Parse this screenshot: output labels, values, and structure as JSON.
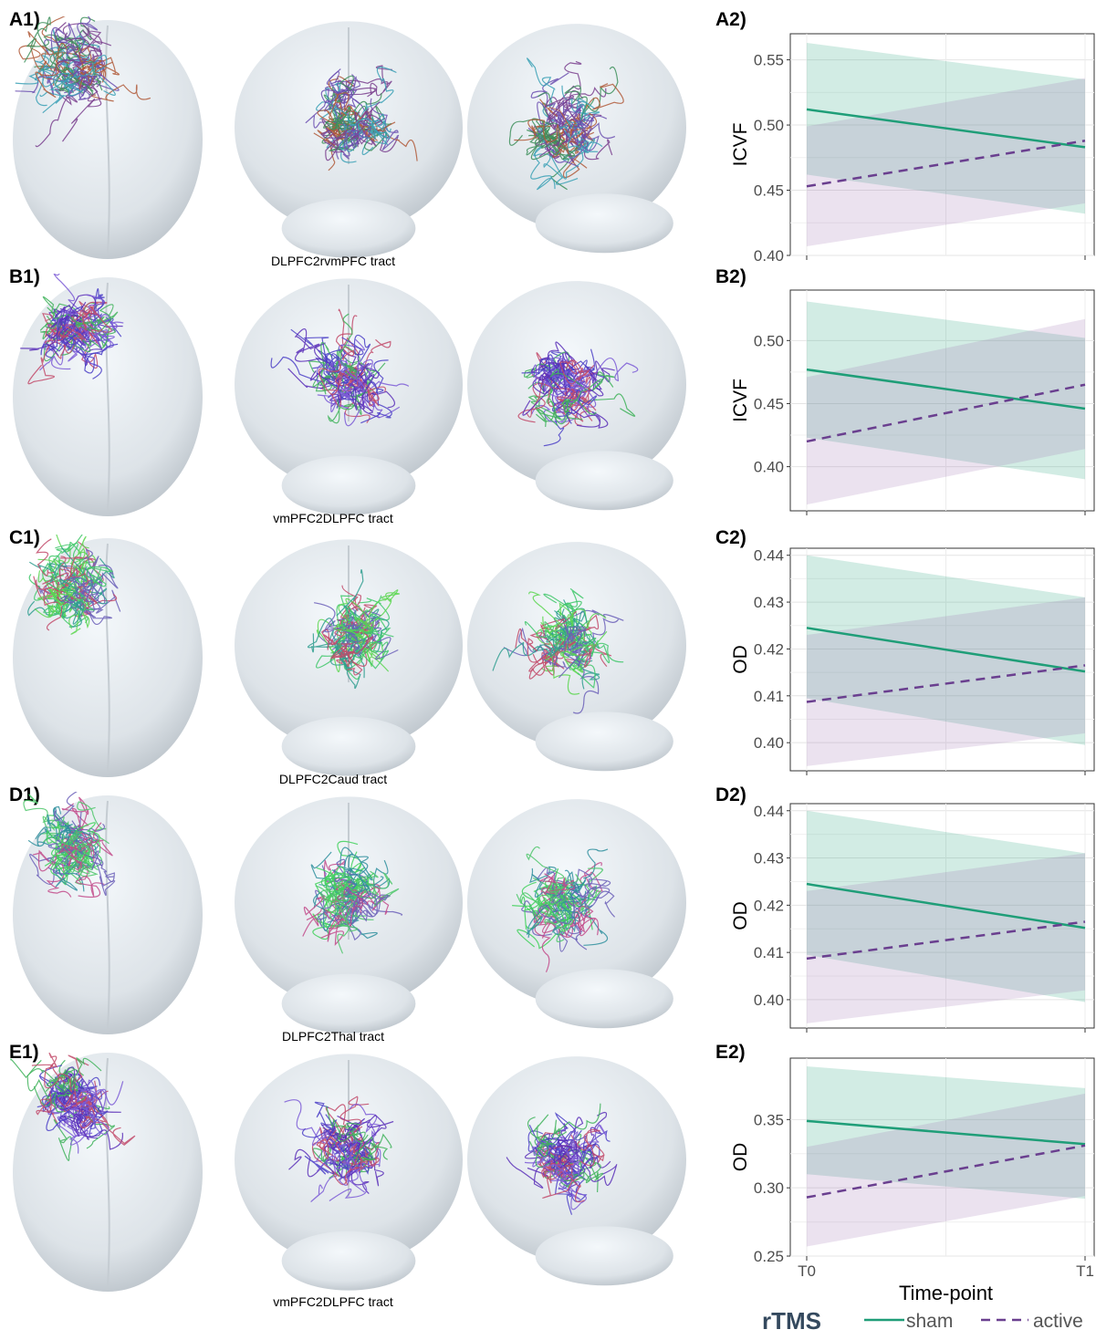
{
  "rows": [
    {
      "label_left": "A1)",
      "label_right": "A2)",
      "caption": "DLPFC2rvmPFC tract",
      "fiber_colors": [
        "#7a3f8e",
        "#3d8f5a",
        "#b05b3a",
        "#6b4fb0",
        "#3aa0b5"
      ]
    },
    {
      "label_left": "B1)",
      "label_right": "B2)",
      "caption": "vmPFC2DLPFC tract",
      "fiber_colors": [
        "#4b3fc7",
        "#5a2fb8",
        "#3fb35a",
        "#c24a6a",
        "#7b5bd6"
      ]
    },
    {
      "label_left": "C1)",
      "label_right": "C2)",
      "caption": "DLPFC2Caud tract",
      "fiber_colors": [
        "#3fc76a",
        "#2f9d8f",
        "#6b5fb8",
        "#c24a6a",
        "#5bd64f"
      ]
    },
    {
      "label_left": "D1)",
      "label_right": "D2)",
      "caption": "DLPFC2Thal tract",
      "fiber_colors": [
        "#3fd15a",
        "#2f8f9d",
        "#6b5fb8",
        "#c24a8a",
        "#4fc76b"
      ]
    },
    {
      "label_left": "E1)",
      "label_right": "E2)",
      "caption": "vmPFC2DLPFC tract",
      "fiber_colors": [
        "#4b3fc7",
        "#5a2fb8",
        "#3fb35a",
        "#c24a6a",
        "#7b5bd6"
      ]
    }
  ],
  "chart_data": [
    {
      "type": "line",
      "panel": "A2)",
      "ylabel": "ICVF",
      "ylim": [
        0.4,
        0.57
      ],
      "yticks": [
        0.4,
        0.45,
        0.5,
        0.55
      ],
      "x": [
        "T0",
        "T1"
      ],
      "series": [
        {
          "name": "sham",
          "values": [
            0.512,
            0.483
          ],
          "ci_lower": [
            0.462,
            0.432
          ],
          "ci_upper": [
            0.563,
            0.535
          ]
        },
        {
          "name": "active",
          "values": [
            0.453,
            0.488
          ],
          "ci_lower": [
            0.407,
            0.44
          ],
          "ci_upper": [
            0.499,
            0.536
          ]
        }
      ]
    },
    {
      "type": "line",
      "panel": "B2)",
      "ylabel": "ICVF",
      "ylim": [
        0.365,
        0.54
      ],
      "yticks": [
        0.4,
        0.45,
        0.5
      ],
      "x": [
        "T0",
        "T1"
      ],
      "series": [
        {
          "name": "sham",
          "values": [
            0.477,
            0.446
          ],
          "ci_lower": [
            0.423,
            0.39
          ],
          "ci_upper": [
            0.531,
            0.502
          ]
        },
        {
          "name": "active",
          "values": [
            0.42,
            0.465
          ],
          "ci_lower": [
            0.37,
            0.414
          ],
          "ci_upper": [
            0.471,
            0.517
          ]
        }
      ]
    },
    {
      "type": "line",
      "panel": "C2)",
      "ylabel": "OD",
      "ylim": [
        0.394,
        0.4415
      ],
      "yticks": [
        0.4,
        0.41,
        0.42,
        0.43,
        0.44
      ],
      "x": [
        "T0",
        "T1"
      ],
      "series": [
        {
          "name": "sham",
          "values": [
            0.4245,
            0.4152
          ],
          "ci_lower": [
            0.4095,
            0.3995
          ],
          "ci_upper": [
            0.44,
            0.431
          ]
        },
        {
          "name": "active",
          "values": [
            0.4087,
            0.4165
          ],
          "ci_lower": [
            0.395,
            0.402
          ],
          "ci_upper": [
            0.423,
            0.431
          ]
        }
      ]
    },
    {
      "type": "line",
      "panel": "D2)",
      "ylabel": "OD",
      "ylim": [
        0.394,
        0.4415
      ],
      "yticks": [
        0.4,
        0.41,
        0.42,
        0.43,
        0.44
      ],
      "x": [
        "T0",
        "T1"
      ],
      "series": [
        {
          "name": "sham",
          "values": [
            0.4245,
            0.4152
          ],
          "ci_lower": [
            0.4095,
            0.3995
          ],
          "ci_upper": [
            0.44,
            0.431
          ]
        },
        {
          "name": "active",
          "values": [
            0.4087,
            0.4165
          ],
          "ci_lower": [
            0.395,
            0.402
          ],
          "ci_upper": [
            0.423,
            0.431
          ]
        }
      ]
    },
    {
      "type": "line",
      "panel": "E2)",
      "ylabel": "OD",
      "xlabel": "Time-point",
      "ylim": [
        0.25,
        0.395
      ],
      "yticks": [
        0.25,
        0.3,
        0.35
      ],
      "x": [
        "T0",
        "T1"
      ],
      "series": [
        {
          "name": "sham",
          "values": [
            0.349,
            0.332
          ],
          "ci_lower": [
            0.31,
            0.292
          ],
          "ci_upper": [
            0.389,
            0.373
          ]
        },
        {
          "name": "active",
          "values": [
            0.293,
            0.331
          ],
          "ci_lower": [
            0.257,
            0.294
          ],
          "ci_upper": [
            0.33,
            0.369
          ]
        }
      ]
    }
  ],
  "legend": {
    "title": "rTMS",
    "sham_label": "sham",
    "active_label": "active",
    "sham_color": "#1f9e78",
    "active_color": "#6a3f8f",
    "sham_ribbon": "#1f9e78",
    "active_ribbon": "#9a6fb0"
  }
}
